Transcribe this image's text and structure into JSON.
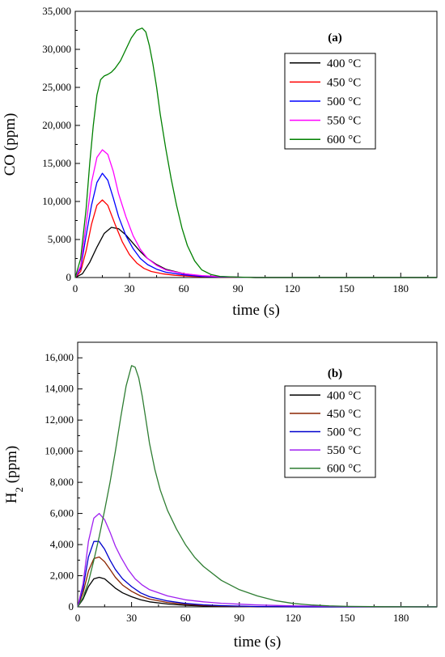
{
  "chart_data": [
    {
      "type": "line",
      "panel_label": "(a)",
      "xlabel": "time (s)",
      "ylabel": "CO (ppm)",
      "xlim": [
        0,
        200
      ],
      "ylim": [
        0,
        35000
      ],
      "xticks": [
        0,
        30,
        60,
        90,
        120,
        150,
        180
      ],
      "xtick_labels": [
        "0",
        "30",
        "60",
        "90",
        "120",
        "150",
        "180"
      ],
      "yticks": [
        0,
        5000,
        10000,
        15000,
        20000,
        25000,
        30000,
        35000
      ],
      "ytick_labels": [
        "0",
        "5,000",
        "10,000",
        "15,000",
        "20,000",
        "25,000",
        "30,000",
        "35,000"
      ],
      "grid": false,
      "legend_position": "top-right",
      "series": [
        {
          "name": "400 °C",
          "color": "#000000",
          "x": [
            0,
            4,
            8,
            12,
            16,
            20,
            24,
            28,
            32,
            36,
            40,
            45,
            50,
            60,
            70,
            80,
            100,
            130,
            160,
            200
          ],
          "y": [
            0,
            500,
            2000,
            4000,
            5800,
            6600,
            6400,
            5600,
            4500,
            3400,
            2500,
            1700,
            1100,
            500,
            200,
            100,
            0,
            0,
            0,
            0
          ]
        },
        {
          "name": "450 °C",
          "color": "#ff0000",
          "x": [
            0,
            3,
            6,
            9,
            12,
            15,
            18,
            22,
            26,
            30,
            34,
            38,
            42,
            48,
            55,
            65,
            80,
            100,
            150,
            200
          ],
          "y": [
            0,
            800,
            3500,
            7000,
            9500,
            10200,
            9500,
            7000,
            4700,
            3000,
            1900,
            1200,
            800,
            500,
            300,
            150,
            50,
            0,
            0,
            0
          ]
        },
        {
          "name": "500 °C",
          "color": "#0000ff",
          "x": [
            0,
            3,
            6,
            9,
            12,
            15,
            18,
            21,
            24,
            28,
            32,
            36,
            40,
            45,
            50,
            60,
            70,
            80,
            100,
            150,
            200
          ],
          "y": [
            0,
            1200,
            5500,
            9500,
            12500,
            13700,
            12800,
            10500,
            8000,
            5500,
            3800,
            2500,
            1700,
            1100,
            700,
            350,
            150,
            80,
            0,
            0,
            0
          ]
        },
        {
          "name": "550 °C",
          "color": "#ff00ff",
          "x": [
            0,
            3,
            6,
            9,
            12,
            15,
            18,
            21,
            24,
            28,
            32,
            36,
            40,
            45,
            50,
            60,
            70,
            80,
            100,
            150,
            200
          ],
          "y": [
            0,
            1500,
            7000,
            12500,
            15800,
            16800,
            16200,
            14000,
            11000,
            8000,
            5500,
            3700,
            2500,
            1600,
            1000,
            500,
            250,
            120,
            0,
            0,
            0
          ]
        },
        {
          "name": "600 °C",
          "color": "#008000",
          "x": [
            0,
            3,
            6,
            8,
            10,
            12,
            14,
            16,
            18,
            20,
            22,
            25,
            28,
            31,
            34,
            37,
            39,
            41,
            43,
            45,
            47,
            50,
            53,
            56,
            59,
            62,
            66,
            70,
            75,
            80,
            90,
            100,
            120,
            150,
            200
          ],
          "y": [
            0,
            2500,
            9000,
            15000,
            20000,
            24000,
            26000,
            26500,
            26700,
            27000,
            27500,
            28500,
            30000,
            31500,
            32500,
            32800,
            32300,
            30500,
            28000,
            25000,
            21500,
            17000,
            13000,
            9500,
            6500,
            4200,
            2200,
            1000,
            400,
            150,
            50,
            0,
            0,
            0,
            0
          ]
        }
      ]
    },
    {
      "type": "line",
      "panel_label": "(b)",
      "xlabel": "time (s)",
      "ylabel": "H",
      "ylabel_subscript": "2",
      "ylabel_suffix": " (ppm)",
      "xlim": [
        0,
        200
      ],
      "ylim": [
        0,
        17000
      ],
      "xticks": [
        0,
        30,
        60,
        90,
        120,
        150,
        180
      ],
      "xtick_labels": [
        "0",
        "30",
        "60",
        "90",
        "120",
        "150",
        "180"
      ],
      "yticks": [
        0,
        2000,
        4000,
        6000,
        8000,
        10000,
        12000,
        14000,
        16000
      ],
      "ytick_labels": [
        "0",
        "2,000",
        "4,000",
        "6,000",
        "8,000",
        "10,000",
        "12,000",
        "14,000",
        "16,000"
      ],
      "grid": false,
      "legend_position": "top-right",
      "series": [
        {
          "name": "400 °C",
          "color": "#000000",
          "x": [
            0,
            3,
            6,
            9,
            12,
            15,
            18,
            21,
            25,
            30,
            35,
            40,
            50,
            60,
            70,
            80,
            100,
            130,
            160,
            200
          ],
          "y": [
            0,
            500,
            1300,
            1800,
            1900,
            1800,
            1500,
            1200,
            900,
            650,
            450,
            320,
            180,
            100,
            60,
            30,
            0,
            0,
            0,
            0
          ]
        },
        {
          "name": "450 °C",
          "color": "#8b2500",
          "x": [
            0,
            3,
            6,
            9,
            12,
            15,
            18,
            21,
            25,
            30,
            35,
            40,
            50,
            60,
            70,
            80,
            100,
            130,
            160,
            200
          ],
          "y": [
            0,
            900,
            2300,
            3100,
            3200,
            2900,
            2400,
            1900,
            1400,
            1000,
            700,
            500,
            280,
            160,
            90,
            50,
            10,
            0,
            0,
            0
          ]
        },
        {
          "name": "500 °C",
          "color": "#0000cd",
          "x": [
            0,
            3,
            6,
            9,
            12,
            15,
            18,
            21,
            25,
            30,
            35,
            40,
            50,
            60,
            70,
            80,
            100,
            130,
            160,
            200
          ],
          "y": [
            0,
            1200,
            3200,
            4200,
            4200,
            3700,
            3000,
            2400,
            1800,
            1300,
            900,
            650,
            380,
            220,
            130,
            80,
            20,
            0,
            0,
            0
          ]
        },
        {
          "name": "550 °C",
          "color": "#a020f0",
          "x": [
            0,
            3,
            6,
            9,
            12,
            15,
            18,
            21,
            24,
            28,
            32,
            36,
            40,
            50,
            60,
            70,
            80,
            90,
            100,
            120,
            150,
            200
          ],
          "y": [
            0,
            1500,
            4200,
            5700,
            6000,
            5600,
            4800,
            3900,
            3200,
            2400,
            1800,
            1400,
            1100,
            700,
            450,
            320,
            230,
            170,
            120,
            60,
            20,
            0
          ]
        },
        {
          "name": "600 °C",
          "color": "#2e7d32",
          "x": [
            0,
            3,
            6,
            9,
            12,
            15,
            18,
            21,
            24,
            27,
            30,
            32,
            34,
            36,
            38,
            40,
            43,
            46,
            50,
            55,
            60,
            65,
            70,
            80,
            90,
            100,
            110,
            120,
            130,
            140,
            150,
            170,
            200
          ],
          "y": [
            0,
            600,
            1600,
            3000,
            4500,
            6200,
            8000,
            10000,
            12200,
            14200,
            15500,
            15400,
            14700,
            13500,
            12000,
            10500,
            8800,
            7500,
            6200,
            5000,
            4000,
            3200,
            2600,
            1700,
            1100,
            700,
            400,
            220,
            120,
            60,
            30,
            10,
            0
          ]
        }
      ]
    }
  ]
}
